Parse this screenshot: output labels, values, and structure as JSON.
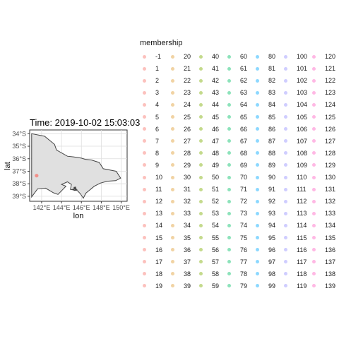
{
  "chart_data": {
    "type": "scatter",
    "title": "Time: 2019-10-02 15:03:03",
    "xlabel": "lon",
    "ylabel": "lat",
    "xlim": [
      140.8,
      150.6
    ],
    "ylim": [
      -39.4,
      -33.7
    ],
    "x_ticks": [
      142,
      144,
      146,
      148,
      150
    ],
    "x_tick_labels": [
      "142°E",
      "144°E",
      "146°E",
      "148°E",
      "150°E"
    ],
    "y_ticks": [
      -34,
      -35,
      -36,
      -37,
      -38,
      -39
    ],
    "y_tick_labels": [
      "34°S",
      "35°S",
      "36°S",
      "37°S",
      "38°S",
      "39°S"
    ],
    "grid": true,
    "basemap": {
      "region_fill": "#e0e0e0",
      "region_stroke": "#444444",
      "outline": [
        [
          141.0,
          -34.0
        ],
        [
          141.0,
          -39.05
        ],
        [
          141.6,
          -38.4
        ],
        [
          142.4,
          -38.35
        ],
        [
          143.2,
          -38.72
        ],
        [
          143.65,
          -38.85
        ],
        [
          144.45,
          -38.2
        ],
        [
          144.0,
          -38.05
        ],
        [
          144.6,
          -37.85
        ],
        [
          145.0,
          -38.05
        ],
        [
          144.9,
          -38.45
        ],
        [
          145.6,
          -38.55
        ],
        [
          145.9,
          -38.8
        ],
        [
          146.2,
          -39.15
        ],
        [
          146.45,
          -38.75
        ],
        [
          147.3,
          -38.2
        ],
        [
          147.9,
          -37.95
        ],
        [
          148.6,
          -37.8
        ],
        [
          149.45,
          -37.75
        ],
        [
          149.95,
          -37.55
        ],
        [
          149.75,
          -37.3
        ],
        [
          149.5,
          -37.0
        ],
        [
          148.2,
          -36.8
        ],
        [
          147.8,
          -36.3
        ],
        [
          147.0,
          -36.1
        ],
        [
          146.4,
          -36.05
        ],
        [
          146.0,
          -35.95
        ],
        [
          145.2,
          -35.85
        ],
        [
          144.6,
          -35.8
        ],
        [
          143.5,
          -35.3
        ],
        [
          143.3,
          -34.85
        ],
        [
          142.3,
          -34.2
        ],
        [
          141.0,
          -34.0
        ]
      ],
      "islands": [
        [
          [
            145.15,
            -38.45
          ],
          [
            145.35,
            -38.38
          ],
          [
            145.5,
            -38.45
          ],
          [
            145.3,
            -38.52
          ],
          [
            145.15,
            -38.45
          ]
        ],
        [
          [
            145.28,
            -38.3
          ],
          [
            145.4,
            -38.28
          ],
          [
            145.42,
            -38.38
          ],
          [
            145.3,
            -38.37
          ],
          [
            145.28,
            -38.3
          ]
        ]
      ]
    },
    "points": [
      {
        "lon": 141.5,
        "lat": -37.35,
        "color": "#F8766D",
        "membership": "-1"
      }
    ],
    "legend": {
      "title": "membership",
      "placement": "right",
      "labels": [
        "-1",
        "1",
        "2",
        "3",
        "4",
        "5",
        "6",
        "7",
        "8",
        "9",
        "10",
        "11",
        "12",
        "13",
        "14",
        "15",
        "16",
        "17",
        "18",
        "19",
        "20",
        "21",
        "22",
        "23",
        "24",
        "25",
        "26",
        "27",
        "28",
        "29",
        "30",
        "31",
        "32",
        "33",
        "34",
        "35",
        "36",
        "37",
        "38",
        "39",
        "40",
        "41",
        "42",
        "43",
        "44",
        "45",
        "46",
        "47",
        "48",
        "49",
        "50",
        "51",
        "52",
        "53",
        "54",
        "55",
        "56",
        "57",
        "58",
        "59",
        "60",
        "61",
        "62",
        "63",
        "64",
        "65",
        "66",
        "67",
        "68",
        "69",
        "70",
        "71",
        "72",
        "73",
        "74",
        "75",
        "76",
        "77",
        "78",
        "79",
        "80",
        "81",
        "82",
        "83",
        "84",
        "85",
        "86",
        "87",
        "88",
        "89",
        "90",
        "91",
        "92",
        "93",
        "94",
        "95",
        "96",
        "97",
        "98",
        "99",
        "100",
        "101",
        "102",
        "103",
        "104",
        "105",
        "106",
        "107",
        "108",
        "109",
        "110",
        "111",
        "112",
        "113",
        "114",
        "115",
        "116",
        "117",
        "118",
        "119",
        "120",
        "121",
        "122",
        "123",
        "124",
        "125",
        "126",
        "127",
        "128",
        "129",
        "130",
        "131",
        "132",
        "133",
        "134",
        "135",
        "136",
        "137",
        "138",
        "139"
      ],
      "colors": [
        "#F8766D",
        "#F8766D",
        "#F8766D",
        "#F8766D",
        "#F8766D",
        "#F8766D",
        "#F8766D",
        "#F8766D",
        "#F8766D",
        "#F8766D",
        "#F8766D",
        "#F8766D",
        "#F8766D",
        "#F8766D",
        "#F8766D",
        "#F8766D",
        "#F8766D",
        "#F8766D",
        "#F8766D",
        "#F8766D",
        "#E19D33",
        "#E19D33",
        "#E19D33",
        "#E19D33",
        "#E19D33",
        "#E19D33",
        "#E19D33",
        "#E19D33",
        "#E19D33",
        "#E19D33",
        "#E19D33",
        "#E19D33",
        "#E19D33",
        "#E19D33",
        "#E19D33",
        "#E19D33",
        "#E19D33",
        "#E19D33",
        "#E19D33",
        "#E19D33",
        "#7CAE00",
        "#7CAE00",
        "#7CAE00",
        "#7CAE00",
        "#7CAE00",
        "#7CAE00",
        "#7CAE00",
        "#7CAE00",
        "#7CAE00",
        "#7CAE00",
        "#7CAE00",
        "#7CAE00",
        "#7CAE00",
        "#7CAE00",
        "#7CAE00",
        "#7CAE00",
        "#7CAE00",
        "#7CAE00",
        "#7CAE00",
        "#7CAE00",
        "#00BE67",
        "#00BE67",
        "#00BE67",
        "#00BE67",
        "#00BE67",
        "#00BE67",
        "#00BE67",
        "#00BE67",
        "#00BE67",
        "#00BE67",
        "#00BE67",
        "#00BE67",
        "#00BE67",
        "#00BE67",
        "#00BE67",
        "#00BE67",
        "#00BE67",
        "#00BE67",
        "#00BE67",
        "#00BE67",
        "#00A9FF",
        "#00A9FF",
        "#00A9FF",
        "#00A9FF",
        "#00A9FF",
        "#00A9FF",
        "#00A9FF",
        "#00A9FF",
        "#00A9FF",
        "#00A9FF",
        "#00A9FF",
        "#00A9FF",
        "#00A9FF",
        "#00A9FF",
        "#00A9FF",
        "#00A9FF",
        "#00A9FF",
        "#00A9FF",
        "#00A9FF",
        "#00A9FF",
        "#9590FF",
        "#9590FF",
        "#9590FF",
        "#9590FF",
        "#9590FF",
        "#9590FF",
        "#9590FF",
        "#9590FF",
        "#9590FF",
        "#9590FF",
        "#9590FF",
        "#9590FF",
        "#9590FF",
        "#9590FF",
        "#9590FF",
        "#9590FF",
        "#9590FF",
        "#9590FF",
        "#9590FF",
        "#9590FF",
        "#FF61C3",
        "#FF61C3",
        "#FF61C3",
        "#FF61C3",
        "#FF61C3",
        "#FF61C3",
        "#FF61C3",
        "#FF61C3",
        "#FF61C3",
        "#FF61C3",
        "#FF61C3",
        "#FF61C3",
        "#FF61C3",
        "#FF61C3",
        "#FF61C3",
        "#FF61C3",
        "#FF61C3",
        "#FF61C3",
        "#FF61C3",
        "#FF61C3"
      ]
    }
  }
}
